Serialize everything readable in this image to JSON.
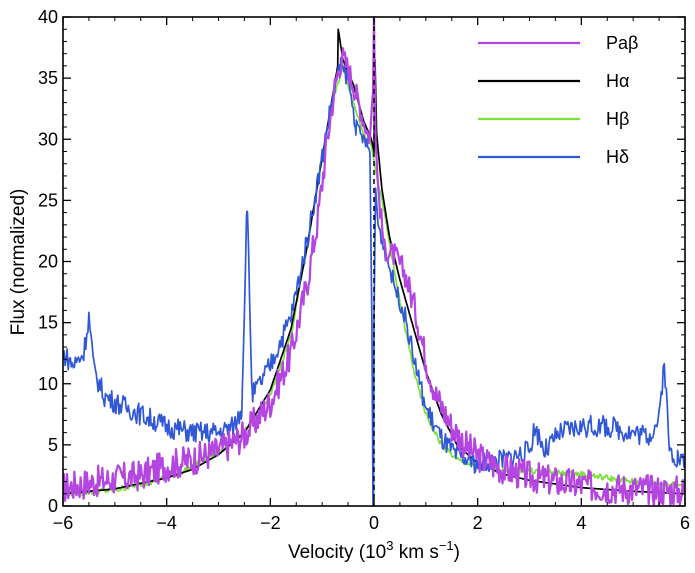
{
  "chart_data": {
    "type": "line",
    "title": "",
    "xlabel": {
      "main": "Velocity (10",
      "sup1": "3",
      "mid": " km s",
      "sup2": "−1",
      "end": ")"
    },
    "ylabel": "Flux (normalized)",
    "xlim": [
      -6,
      6
    ],
    "ylim": [
      0,
      40
    ],
    "xticks": [
      -6,
      -4,
      -2,
      0,
      2,
      4,
      6
    ],
    "xtick_labels": [
      "−6",
      "−4",
      "−2",
      "0",
      "2",
      "4",
      "6"
    ],
    "yticks": [
      0,
      5,
      10,
      15,
      20,
      25,
      30,
      35,
      40
    ],
    "ytick_labels": [
      "0",
      "5",
      "10",
      "15",
      "20",
      "25",
      "30",
      "35",
      "40"
    ],
    "vline_x": 0,
    "legend_position": "top-right",
    "series": [
      {
        "name": "Paβ",
        "color": "#b445e0",
        "x": [
          -6.0,
          -5.5,
          -5.0,
          -4.5,
          -4.0,
          -3.5,
          -3.0,
          -2.5,
          -2.0,
          -1.6,
          -1.3,
          -1.1,
          -0.9,
          -0.75,
          -0.62,
          -0.5,
          -0.35,
          -0.2,
          -0.08,
          -0.02,
          0.0,
          0.03,
          0.08,
          0.2,
          0.4,
          0.6,
          0.8,
          1.0,
          1.2,
          1.5,
          1.8,
          2.1,
          2.5,
          3.0,
          3.5,
          4.0,
          4.5,
          5.0,
          5.5,
          6.0
        ],
        "y": [
          1.5,
          1.9,
          2.2,
          2.5,
          3.3,
          3.8,
          4.5,
          5.8,
          8.5,
          12.5,
          18.0,
          23.0,
          30.0,
          34.5,
          36.8,
          35.8,
          33.8,
          31.5,
          30.0,
          34.0,
          40.0,
          30.0,
          26.0,
          21.0,
          20.5,
          19.0,
          16.0,
          12.0,
          9.0,
          6.5,
          4.8,
          3.8,
          3.0,
          2.4,
          2.0,
          1.7,
          1.5,
          1.4,
          1.3,
          1.2
        ]
      },
      {
        "name": "Hα",
        "color": "#000000",
        "x": [
          -6.0,
          -5.0,
          -4.0,
          -3.5,
          -3.0,
          -2.5,
          -2.0,
          -1.6,
          -1.3,
          -1.0,
          -0.8,
          -0.7,
          -0.69,
          -0.6,
          -0.4,
          -0.2,
          -0.05,
          0.0,
          0.02,
          0.05,
          0.15,
          0.3,
          0.5,
          0.7,
          1.0,
          1.3,
          1.6,
          2.0,
          2.5,
          3.0,
          4.0,
          5.0,
          6.0
        ],
        "y": [
          1.0,
          1.4,
          2.3,
          3.0,
          4.2,
          6.0,
          9.5,
          14.5,
          21.0,
          28.5,
          33.5,
          36.0,
          39.0,
          36.5,
          34.5,
          31.5,
          30.0,
          29.0,
          36.5,
          30.5,
          26.0,
          22.0,
          18.5,
          15.5,
          11.0,
          7.5,
          5.0,
          3.5,
          2.6,
          2.1,
          1.5,
          1.2,
          1.0
        ]
      },
      {
        "name": "Hβ",
        "color": "#7ce03a",
        "x": [
          -6.0,
          -5.0,
          -4.0,
          -3.5,
          -3.0,
          -2.5,
          -2.0,
          -1.6,
          -1.3,
          -1.0,
          -0.8,
          -0.6,
          -0.4,
          -0.2,
          -0.05,
          0.05,
          0.2,
          0.4,
          0.6,
          0.8,
          1.0,
          1.3,
          1.6,
          2.0,
          2.5,
          3.0,
          3.5,
          4.0,
          4.5,
          5.0,
          5.5,
          6.0
        ],
        "y": [
          1.0,
          1.3,
          2.3,
          3.2,
          4.5,
          6.0,
          9.0,
          14.0,
          21.0,
          28.5,
          33.0,
          36.0,
          33.0,
          30.5,
          29.5,
          27.0,
          24.0,
          19.0,
          14.5,
          10.5,
          7.5,
          5.0,
          3.8,
          3.2,
          3.0,
          2.9,
          2.7,
          2.6,
          2.3,
          2.0,
          1.8,
          1.7
        ]
      },
      {
        "name": "Hδ",
        "color": "#2f57d6",
        "x": [
          -6.0,
          -5.8,
          -5.6,
          -5.5,
          -5.4,
          -5.2,
          -5.0,
          -4.5,
          -4.0,
          -3.5,
          -3.0,
          -2.7,
          -2.55,
          -2.45,
          -2.35,
          -2.2,
          -2.0,
          -1.6,
          -1.3,
          -1.0,
          -0.8,
          -0.65,
          -0.5,
          -0.35,
          -0.2,
          -0.08,
          -0.04,
          -0.02,
          -0.01,
          0.0,
          0.03,
          0.08,
          0.2,
          0.4,
          0.6,
          0.8,
          1.0,
          1.3,
          1.6,
          2.0,
          2.5,
          3.0,
          3.1,
          3.3,
          3.6,
          4.0,
          4.5,
          5.0,
          5.3,
          5.5,
          5.6,
          5.7,
          5.85,
          6.0
        ],
        "y": [
          12.5,
          11.5,
          12.5,
          15.5,
          11.0,
          9.0,
          8.5,
          7.5,
          6.5,
          6.0,
          6.0,
          6.5,
          8.0,
          25.0,
          9.0,
          10.0,
          11.5,
          15.5,
          21.5,
          28.5,
          33.5,
          36.0,
          35.0,
          31.0,
          30.0,
          29.0,
          15.0,
          0.0,
          0.0,
          15.0,
          26.0,
          23.0,
          21.0,
          18.0,
          15.5,
          11.5,
          8.0,
          5.5,
          4.0,
          3.5,
          3.8,
          4.5,
          6.5,
          4.5,
          6.0,
          6.5,
          6.5,
          6.0,
          5.8,
          7.0,
          12.0,
          4.5,
          4.0,
          3.5
        ]
      }
    ]
  }
}
